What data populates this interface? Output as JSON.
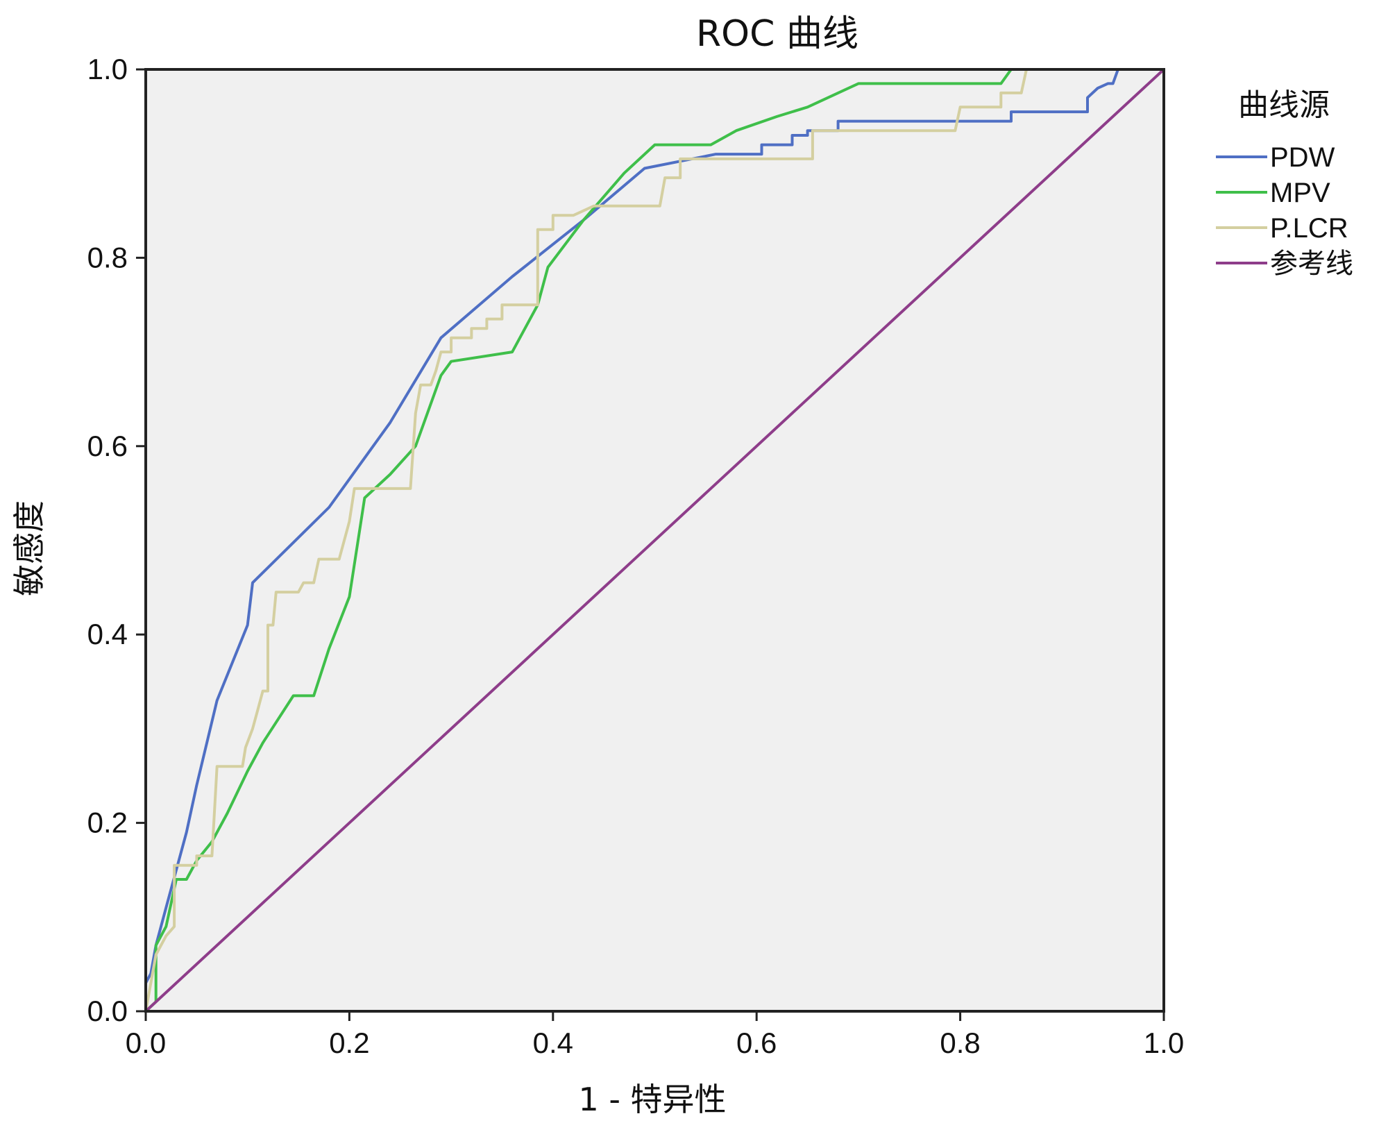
{
  "chart_data": {
    "type": "line",
    "title": "ROC 曲线",
    "xlabel": "1 - 特异性",
    "ylabel": "敏感度",
    "xlim": [
      0,
      1
    ],
    "ylim": [
      0,
      1
    ],
    "x_ticks": [
      "0.0",
      "0.2",
      "0.4",
      "0.6",
      "0.8",
      "1.0"
    ],
    "y_ticks": [
      "0.0",
      "0.2",
      "0.4",
      "0.6",
      "0.8",
      "1.0"
    ],
    "grid": false,
    "plot_background": "#f0f0f0",
    "legend": {
      "title": "曲线源",
      "placement": "right"
    },
    "series": [
      {
        "name": "PDW",
        "color": "#4f6fc4",
        "step": false,
        "points": [
          [
            0,
            0
          ],
          [
            0,
            0.03
          ],
          [
            0.005,
            0.04
          ],
          [
            0.01,
            0.07
          ],
          [
            0.02,
            0.11
          ],
          [
            0.04,
            0.19
          ],
          [
            0.05,
            0.24
          ],
          [
            0.07,
            0.33
          ],
          [
            0.1,
            0.41
          ],
          [
            0.105,
            0.455
          ],
          [
            0.18,
            0.535
          ],
          [
            0.24,
            0.625
          ],
          [
            0.29,
            0.715
          ],
          [
            0.36,
            0.78
          ],
          [
            0.43,
            0.84
          ],
          [
            0.49,
            0.895
          ],
          [
            0.56,
            0.91
          ],
          [
            0.605,
            0.91
          ],
          [
            0.605,
            0.92
          ],
          [
            0.635,
            0.92
          ],
          [
            0.635,
            0.93
          ],
          [
            0.65,
            0.93
          ],
          [
            0.65,
            0.935
          ],
          [
            0.68,
            0.935
          ],
          [
            0.68,
            0.945
          ],
          [
            0.85,
            0.945
          ],
          [
            0.85,
            0.955
          ],
          [
            0.925,
            0.955
          ],
          [
            0.925,
            0.97
          ],
          [
            0.935,
            0.98
          ],
          [
            0.945,
            0.985
          ],
          [
            0.95,
            0.985
          ],
          [
            0.955,
            1
          ],
          [
            1,
            1
          ]
        ]
      },
      {
        "name": "MPV",
        "color": "#3fbf4a",
        "step": false,
        "points": [
          [
            0,
            0
          ],
          [
            0.01,
            0.01
          ],
          [
            0.01,
            0.07
          ],
          [
            0.02,
            0.09
          ],
          [
            0.03,
            0.14
          ],
          [
            0.04,
            0.14
          ],
          [
            0.05,
            0.16
          ],
          [
            0.065,
            0.18
          ],
          [
            0.08,
            0.21
          ],
          [
            0.1,
            0.255
          ],
          [
            0.115,
            0.285
          ],
          [
            0.145,
            0.335
          ],
          [
            0.16,
            0.335
          ],
          [
            0.165,
            0.335
          ],
          [
            0.18,
            0.385
          ],
          [
            0.2,
            0.44
          ],
          [
            0.215,
            0.545
          ],
          [
            0.24,
            0.57
          ],
          [
            0.265,
            0.6
          ],
          [
            0.29,
            0.675
          ],
          [
            0.3,
            0.69
          ],
          [
            0.36,
            0.7
          ],
          [
            0.385,
            0.75
          ],
          [
            0.395,
            0.79
          ],
          [
            0.43,
            0.84
          ],
          [
            0.47,
            0.89
          ],
          [
            0.5,
            0.92
          ],
          [
            0.555,
            0.92
          ],
          [
            0.58,
            0.935
          ],
          [
            0.62,
            0.95
          ],
          [
            0.65,
            0.96
          ],
          [
            0.7,
            0.985
          ],
          [
            0.84,
            0.985
          ],
          [
            0.85,
            1
          ],
          [
            1,
            1
          ]
        ]
      },
      {
        "name": "P.LCR",
        "color": "#d4cfa0",
        "step": false,
        "points": [
          [
            0,
            0
          ],
          [
            0.01,
            0.06
          ],
          [
            0.02,
            0.08
          ],
          [
            0.028,
            0.09
          ],
          [
            0.028,
            0.155
          ],
          [
            0.05,
            0.155
          ],
          [
            0.05,
            0.165
          ],
          [
            0.065,
            0.165
          ],
          [
            0.07,
            0.26
          ],
          [
            0.095,
            0.26
          ],
          [
            0.098,
            0.28
          ],
          [
            0.105,
            0.3
          ],
          [
            0.11,
            0.32
          ],
          [
            0.115,
            0.34
          ],
          [
            0.12,
            0.34
          ],
          [
            0.12,
            0.41
          ],
          [
            0.125,
            0.41
          ],
          [
            0.128,
            0.445
          ],
          [
            0.15,
            0.445
          ],
          [
            0.155,
            0.455
          ],
          [
            0.165,
            0.455
          ],
          [
            0.17,
            0.48
          ],
          [
            0.19,
            0.48
          ],
          [
            0.2,
            0.52
          ],
          [
            0.205,
            0.555
          ],
          [
            0.26,
            0.555
          ],
          [
            0.265,
            0.635
          ],
          [
            0.27,
            0.665
          ],
          [
            0.28,
            0.665
          ],
          [
            0.285,
            0.68
          ],
          [
            0.29,
            0.7
          ],
          [
            0.3,
            0.7
          ],
          [
            0.3,
            0.715
          ],
          [
            0.32,
            0.715
          ],
          [
            0.32,
            0.725
          ],
          [
            0.335,
            0.725
          ],
          [
            0.335,
            0.735
          ],
          [
            0.35,
            0.735
          ],
          [
            0.35,
            0.75
          ],
          [
            0.385,
            0.75
          ],
          [
            0.385,
            0.83
          ],
          [
            0.4,
            0.83
          ],
          [
            0.4,
            0.845
          ],
          [
            0.42,
            0.845
          ],
          [
            0.44,
            0.855
          ],
          [
            0.505,
            0.855
          ],
          [
            0.51,
            0.885
          ],
          [
            0.525,
            0.885
          ],
          [
            0.525,
            0.905
          ],
          [
            0.655,
            0.905
          ],
          [
            0.655,
            0.935
          ],
          [
            0.795,
            0.935
          ],
          [
            0.8,
            0.96
          ],
          [
            0.84,
            0.96
          ],
          [
            0.84,
            0.975
          ],
          [
            0.86,
            0.975
          ],
          [
            0.865,
            1
          ],
          [
            1,
            1
          ]
        ]
      },
      {
        "name": "参考线",
        "color": "#8e3d8a",
        "step": false,
        "points": [
          [
            0,
            0
          ],
          [
            1,
            1
          ]
        ]
      }
    ]
  }
}
